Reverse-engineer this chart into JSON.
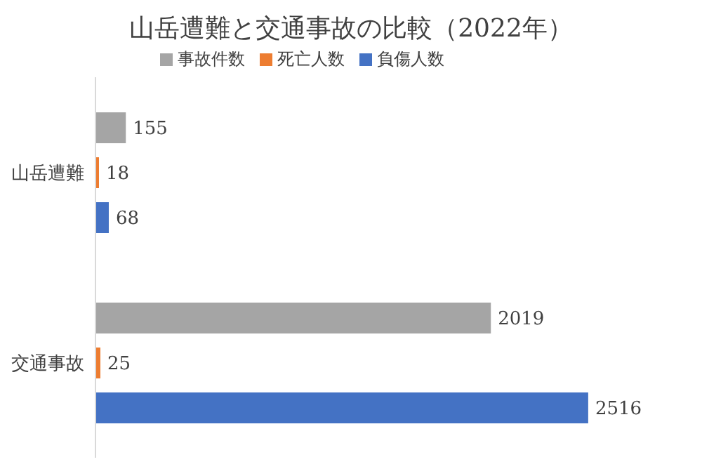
{
  "chart_data": {
    "type": "bar",
    "orientation": "horizontal",
    "title": "山岳遭難と交通事故の比較（2022年）",
    "categories": [
      "山岳遭難",
      "交通事故"
    ],
    "series": [
      {
        "name": "事故件数",
        "color": "#a5a5a5",
        "values": [
          155,
          2019
        ]
      },
      {
        "name": "死亡人数",
        "color": "#ed7d31",
        "values": [
          18,
          25
        ]
      },
      {
        "name": "負傷人数",
        "color": "#4472c4",
        "values": [
          68,
          2516
        ]
      }
    ],
    "data_labels": true,
    "legend": "top",
    "grid": false
  }
}
